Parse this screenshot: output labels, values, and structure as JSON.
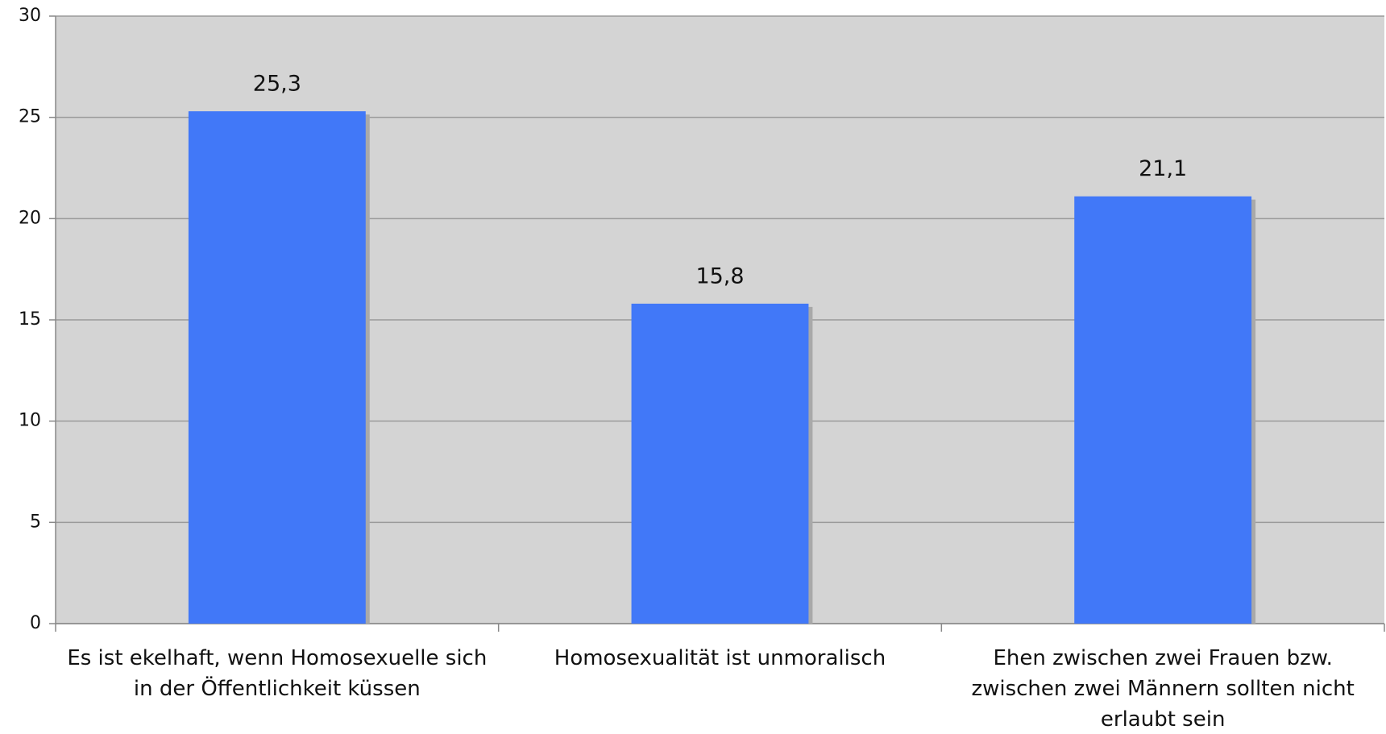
{
  "chart_data": {
    "type": "bar",
    "categories": [
      "Es ist ekelhaft, wenn Homosexuelle sich in der Öffentlichkeit küssen",
      "Homosexualität ist unmoralisch",
      "Ehen zwischen zwei Frauen bzw. zwischen zwei Männern sollten nicht erlaubt sein"
    ],
    "values": [
      25.3,
      15.8,
      21.1
    ],
    "value_labels": [
      "25,3",
      "15,8",
      "21,1"
    ],
    "color": "#4178f8",
    "ylim": [
      0,
      30
    ],
    "yticks": [
      0,
      5,
      10,
      15,
      20,
      25,
      30
    ],
    "grid": true
  }
}
